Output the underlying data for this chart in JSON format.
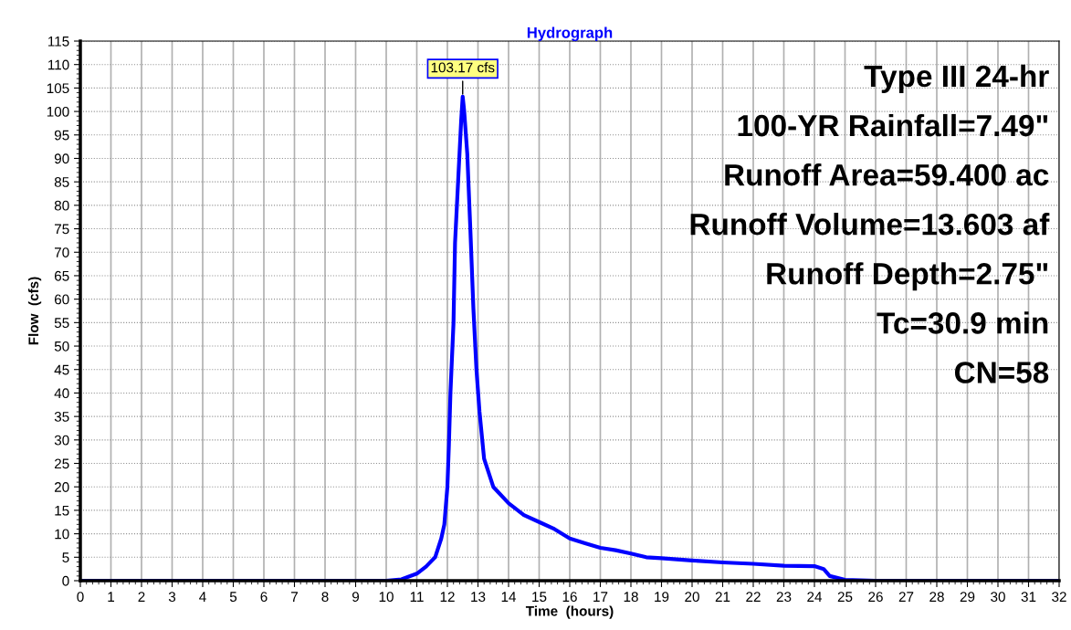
{
  "chart_data": {
    "type": "line",
    "title": "Hydrograph",
    "xlabel": "Time  (hours)",
    "ylabel": "Flow  (cfs)",
    "x": [
      0,
      10,
      10.5,
      11,
      11.3,
      11.6,
      11.8,
      11.9,
      12.0,
      12.05,
      12.1,
      12.2,
      12.25,
      12.35,
      12.45,
      12.5,
      12.55,
      12.65,
      12.75,
      12.85,
      12.95,
      13.05,
      13.2,
      13.5,
      14.0,
      14.5,
      15,
      15.5,
      16,
      16.5,
      17,
      17.5,
      18,
      18.5,
      19,
      20,
      21,
      22,
      23,
      24,
      24.3,
      24.5,
      25,
      26,
      32
    ],
    "series": [
      {
        "color": "#0000ff",
        "values": [
          0,
          0,
          0.3,
          1.5,
          3,
          5,
          9,
          12,
          20,
          29,
          40,
          55,
          72,
          85,
          98,
          103.17,
          100,
          91,
          75,
          58,
          45,
          36,
          26,
          20,
          16.5,
          14,
          12.5,
          11,
          9,
          8,
          7,
          6.5,
          5.8,
          5,
          4.8,
          4.3,
          3.9,
          3.6,
          3.2,
          3.1,
          2.5,
          1,
          0.2,
          0,
          0
        ]
      }
    ],
    "xlim": [
      0,
      32
    ],
    "xticks": [
      0,
      1,
      2,
      3,
      4,
      5,
      6,
      7,
      8,
      9,
      10,
      11,
      12,
      13,
      14,
      15,
      16,
      17,
      18,
      19,
      20,
      21,
      22,
      23,
      24,
      25,
      26,
      27,
      28,
      29,
      30,
      31,
      32
    ],
    "ylim": [
      0,
      115
    ],
    "yticks": [
      0,
      5,
      10,
      15,
      20,
      25,
      30,
      35,
      40,
      45,
      50,
      55,
      60,
      65,
      70,
      75,
      80,
      85,
      90,
      95,
      100,
      105,
      110,
      115
    ],
    "grid": true,
    "legend": false,
    "marker": "none",
    "line_style": "solid",
    "annotations": [
      {
        "text": "103.17 cfs",
        "x": 12.5,
        "y": 103.17
      },
      "Type III 24-hr",
      "100-YR Rainfall=7.49\"",
      "Runoff Area=59.400 ac",
      "Runoff Volume=13.603 af",
      "Runoff Depth=2.75\"",
      "Tc=30.9 min",
      "CN=58"
    ]
  }
}
